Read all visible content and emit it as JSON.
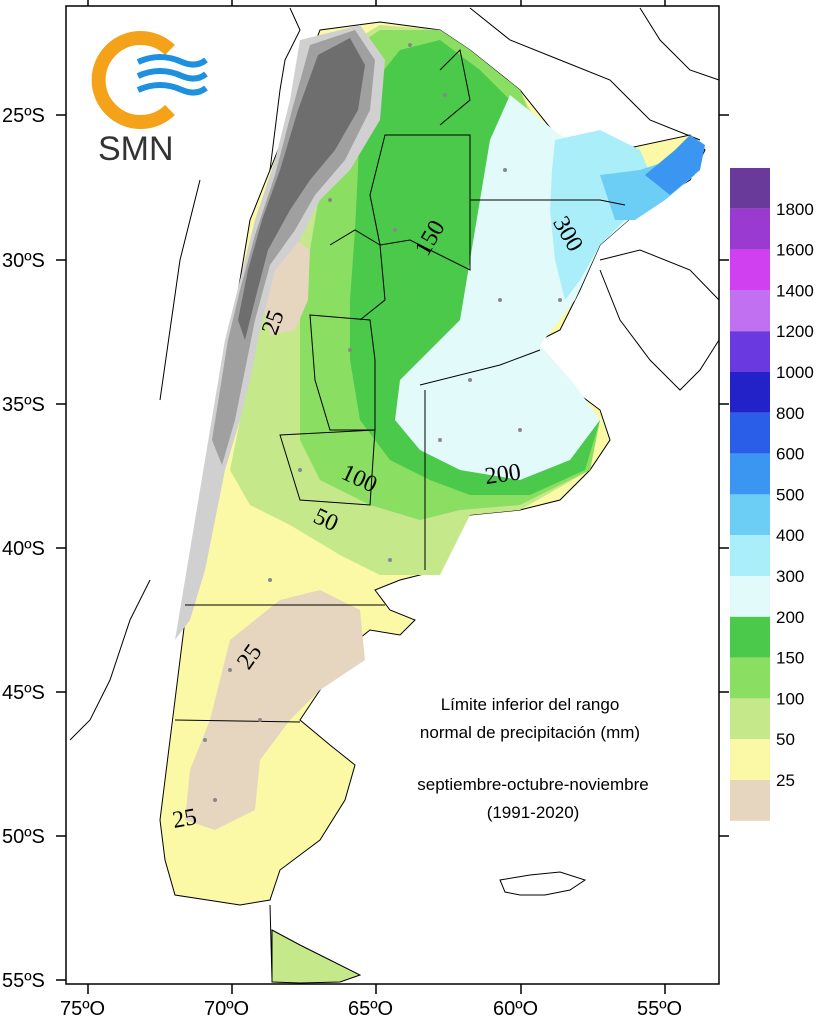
{
  "map": {
    "logo_text": "SMN",
    "lat_labels": [
      "25ºS",
      "30ºS",
      "35ºS",
      "40ºS",
      "45ºS",
      "50ºS",
      "55ºS"
    ],
    "lon_labels": [
      "75ºO",
      "70ºO",
      "65ºO",
      "60ºO",
      "55ºO"
    ],
    "caption": {
      "line1": "Límite inferior del rango",
      "line2": "normal de precipitación (mm)",
      "line3": "septiembre-octubre-noviembre",
      "line4": "(1991-2020)"
    },
    "contour_labels": [
      "150",
      "300",
      "25",
      "200",
      "100",
      "50",
      "25",
      "25"
    ],
    "legend": [
      {
        "label": "1800",
        "color": "#6a3a9a"
      },
      {
        "label": "1600",
        "color": "#9a3ad0"
      },
      {
        "label": "1400",
        "color": "#d040f0"
      },
      {
        "label": "1200",
        "color": "#c070f0"
      },
      {
        "label": "1000",
        "color": "#6a3ae0"
      },
      {
        "label": "800",
        "color": "#2222c8"
      },
      {
        "label": "600",
        "color": "#2a5ee8"
      },
      {
        "label": "500",
        "color": "#3a96f0"
      },
      {
        "label": "400",
        "color": "#6ccdf5"
      },
      {
        "label": "300",
        "color": "#aaeefa"
      },
      {
        "label": "200",
        "color": "#e2fafa"
      },
      {
        "label": "150",
        "color": "#4ac94a"
      },
      {
        "label": "100",
        "color": "#8ade62"
      },
      {
        "label": "50",
        "color": "#c5e88a"
      },
      {
        "label": "25",
        "color": "#fbf9a6"
      },
      {
        "label": "",
        "color": "#e6d5bf"
      }
    ],
    "colors": {
      "relief_dark": "#6e6e6e",
      "relief_mid": "#a0a0a0",
      "relief_light": "#d0d0d0",
      "logo_orange": "#f3a21a",
      "logo_blue": "#1e90e0"
    }
  }
}
